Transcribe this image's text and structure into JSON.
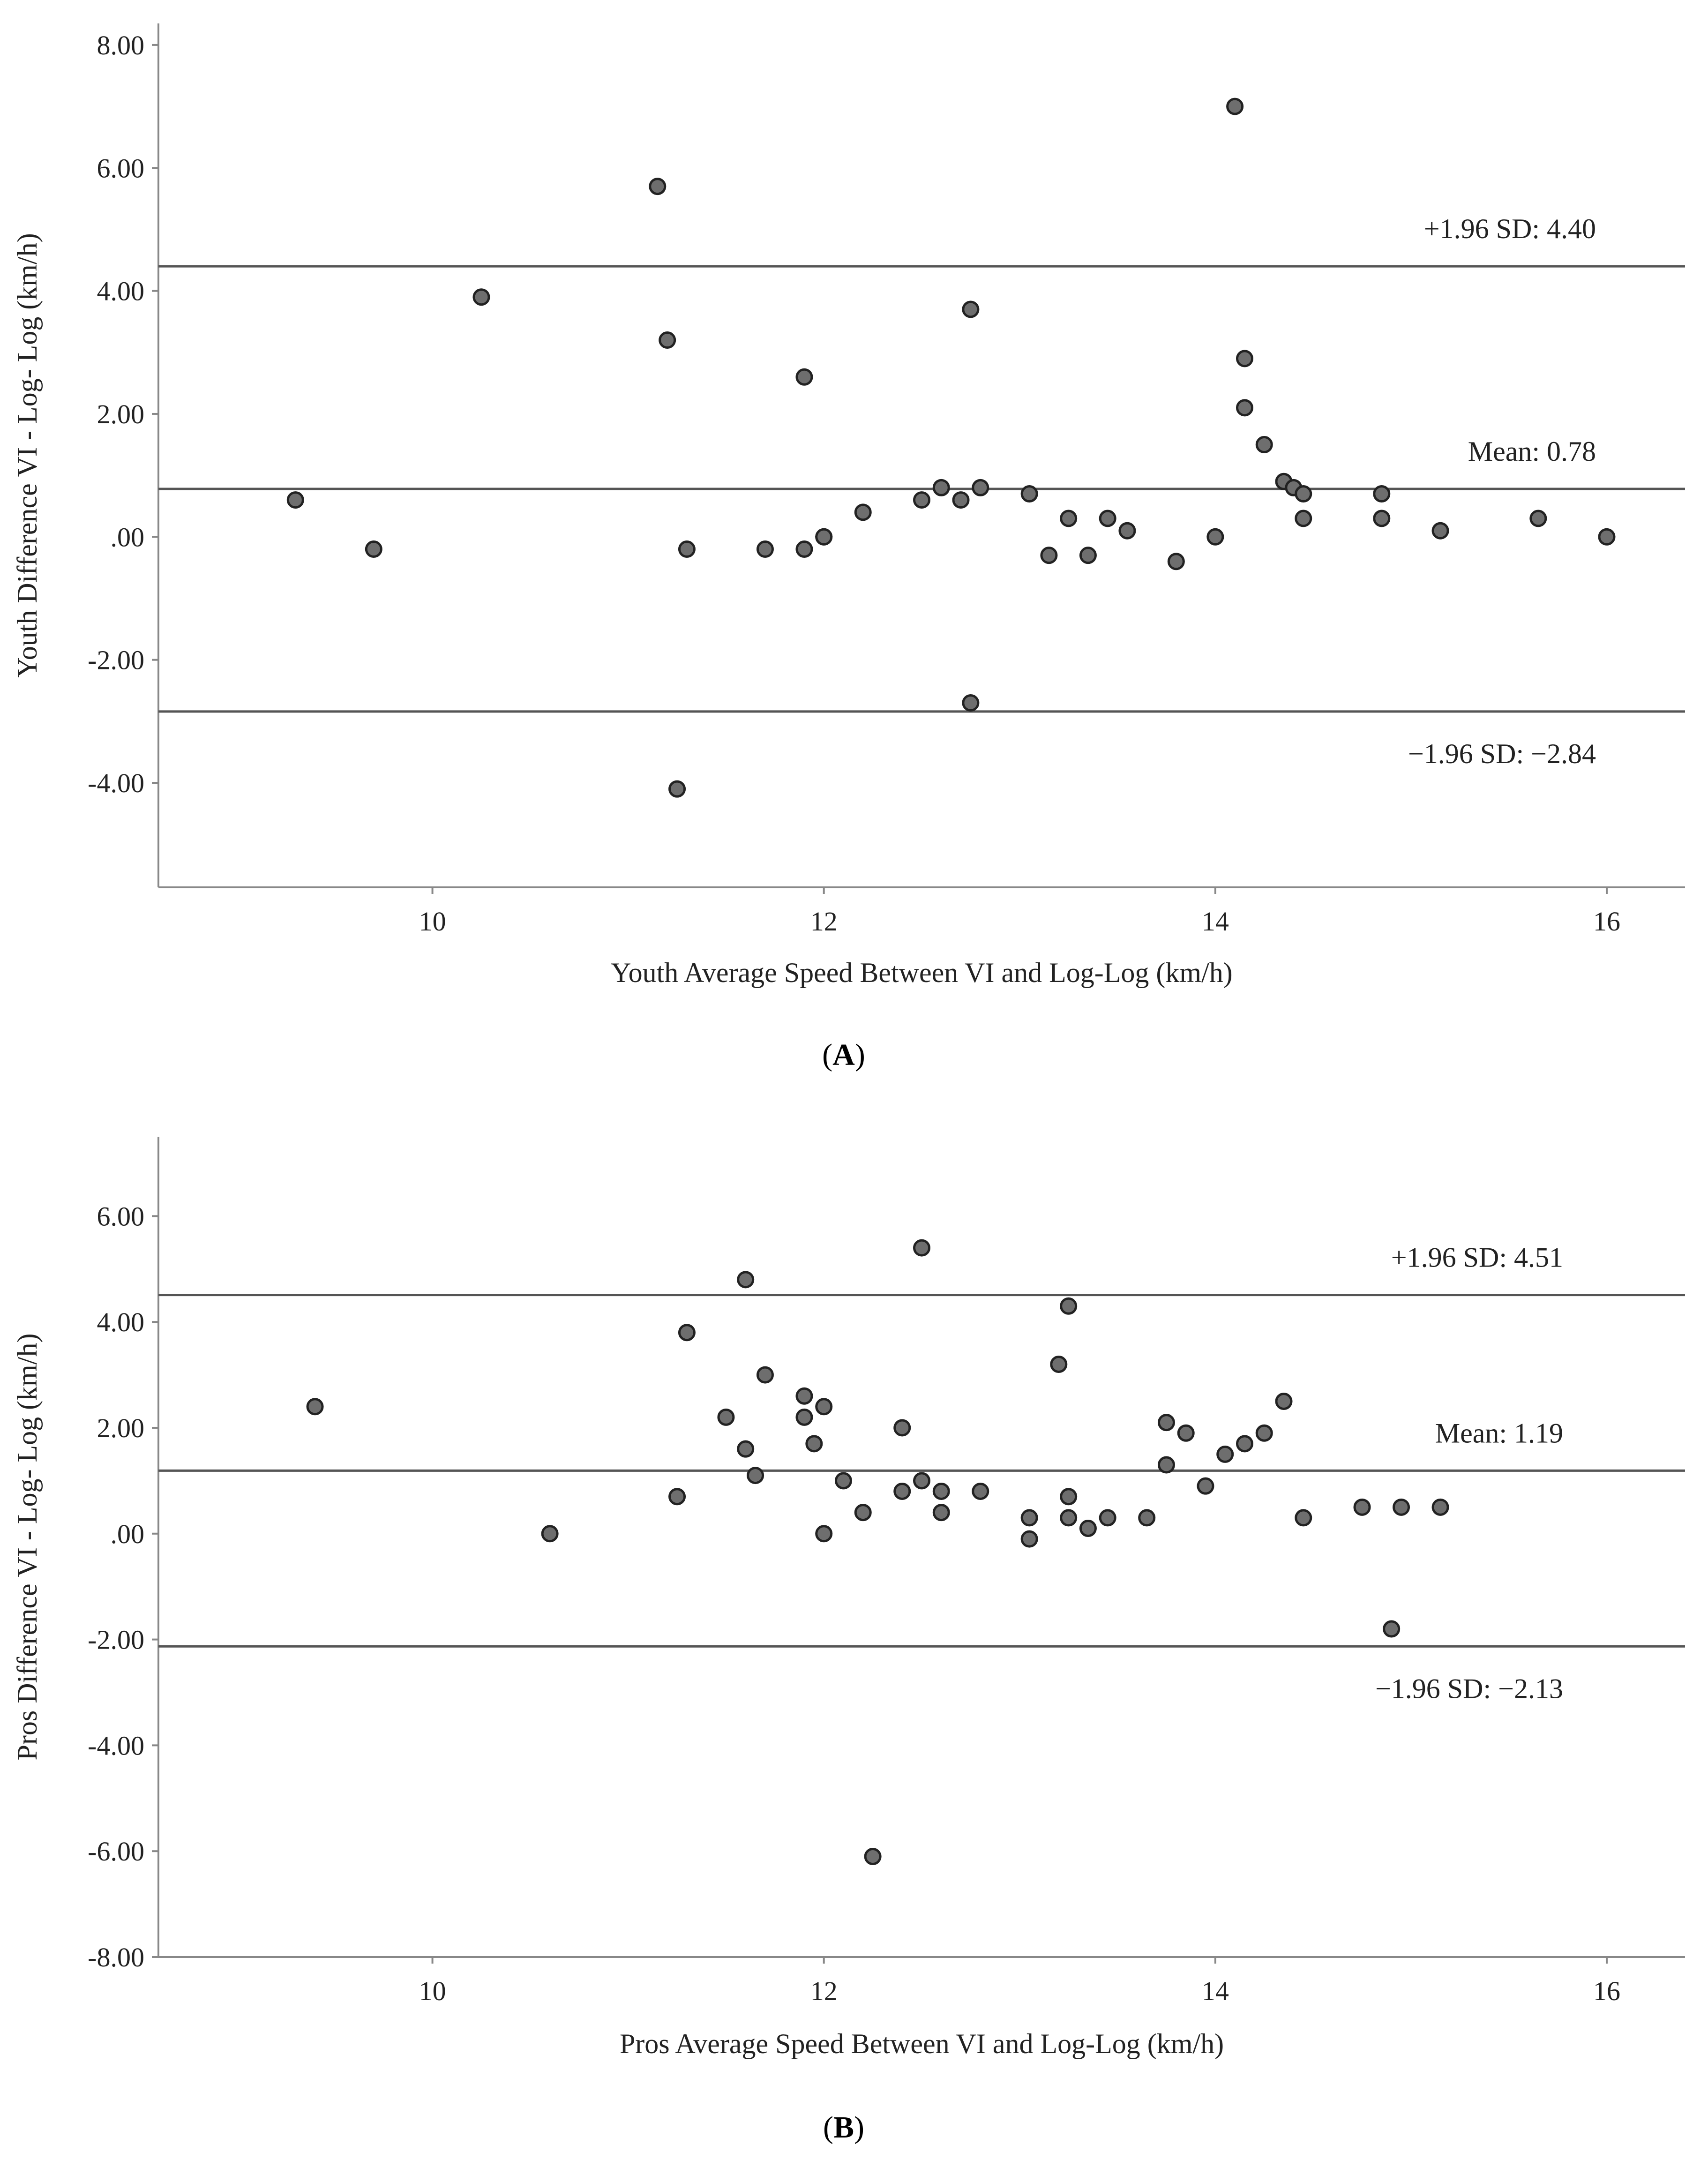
{
  "chart_data": [
    {
      "type": "scatter",
      "panel_label": "A",
      "xlabel": "Youth Average Speed Between VI and Log-Log (km/h)",
      "ylabel": "Youth Difference VI - Log- Log (km/h)",
      "xlim": [
        8.6,
        16.4
      ],
      "ylim": [
        -5.7,
        8.35
      ],
      "xticks": [
        10,
        12,
        14,
        16
      ],
      "xtick_labels": [
        "10",
        "12",
        "14",
        "16"
      ],
      "yticks": [
        8,
        6,
        4,
        2,
        0,
        -2,
        -4
      ],
      "ytick_labels": [
        "8.00",
        "6.00",
        "4.00",
        "2.00",
        ".00",
        "-2.00",
        "-4.00"
      ],
      "reference_lines": [
        {
          "name": "upper",
          "value": 4.4,
          "label": "+1.96 SD: 4.40"
        },
        {
          "name": "mean",
          "value": 0.78,
          "label": "Mean: 0.78"
        },
        {
          "name": "lower",
          "value": -2.84,
          "label": "−1.96 SD: −2.84"
        }
      ],
      "points": [
        {
          "x": 9.3,
          "y": 0.6
        },
        {
          "x": 9.7,
          "y": -0.2
        },
        {
          "x": 10.25,
          "y": 3.9
        },
        {
          "x": 11.15,
          "y": 5.7
        },
        {
          "x": 11.2,
          "y": 3.2
        },
        {
          "x": 11.25,
          "y": -4.1
        },
        {
          "x": 11.3,
          "y": -0.2
        },
        {
          "x": 11.7,
          "y": -0.2
        },
        {
          "x": 11.9,
          "y": 2.6
        },
        {
          "x": 11.9,
          "y": -0.2
        },
        {
          "x": 12.0,
          "y": 0.0
        },
        {
          "x": 12.0,
          "y": 0.0
        },
        {
          "x": 12.2,
          "y": 0.4
        },
        {
          "x": 12.5,
          "y": 0.6
        },
        {
          "x": 12.6,
          "y": 0.8
        },
        {
          "x": 12.7,
          "y": 0.6
        },
        {
          "x": 12.75,
          "y": 3.7
        },
        {
          "x": 12.75,
          "y": -2.7
        },
        {
          "x": 12.8,
          "y": 0.8
        },
        {
          "x": 13.05,
          "y": 0.7
        },
        {
          "x": 13.15,
          "y": -0.3
        },
        {
          "x": 13.25,
          "y": 0.3
        },
        {
          "x": 13.35,
          "y": -0.3
        },
        {
          "x": 13.45,
          "y": 0.3
        },
        {
          "x": 13.55,
          "y": 0.1
        },
        {
          "x": 13.8,
          "y": -0.4
        },
        {
          "x": 14.0,
          "y": 0.0
        },
        {
          "x": 14.1,
          "y": 7.0
        },
        {
          "x": 14.15,
          "y": 2.9
        },
        {
          "x": 14.15,
          "y": 2.1
        },
        {
          "x": 14.25,
          "y": 1.5
        },
        {
          "x": 14.35,
          "y": 0.9
        },
        {
          "x": 14.4,
          "y": 0.8
        },
        {
          "x": 14.45,
          "y": 0.7
        },
        {
          "x": 14.45,
          "y": 0.3
        },
        {
          "x": 14.85,
          "y": 0.7
        },
        {
          "x": 14.85,
          "y": 0.3
        },
        {
          "x": 15.15,
          "y": 0.1
        },
        {
          "x": 15.65,
          "y": 0.3
        },
        {
          "x": 16.0,
          "y": 0.0
        }
      ]
    },
    {
      "type": "scatter",
      "panel_label": "B",
      "xlabel": "Pros Average Speed Between VI and Log-Log (km/h)",
      "ylabel": "Pros Difference VI - Log- Log (km/h)",
      "xlim": [
        8.6,
        16.4
      ],
      "ylim": [
        -8.0,
        7.5
      ],
      "xticks": [
        10,
        12,
        14,
        16
      ],
      "xtick_labels": [
        "10",
        "12",
        "14",
        "16"
      ],
      "yticks": [
        6,
        4,
        2,
        0,
        -2,
        -4,
        -6,
        -8
      ],
      "ytick_labels": [
        "6.00",
        "4.00",
        "2.00",
        ".00",
        "-2.00",
        "-4.00",
        "-6.00",
        "-8.00"
      ],
      "reference_lines": [
        {
          "name": "upper",
          "value": 4.51,
          "label": "+1.96 SD: 4.51"
        },
        {
          "name": "mean",
          "value": 1.19,
          "label": "Mean: 1.19"
        },
        {
          "name": "lower",
          "value": -2.13,
          "label": "−1.96 SD: −2.13"
        }
      ],
      "points": [
        {
          "x": 9.4,
          "y": 2.4
        },
        {
          "x": 10.6,
          "y": 0.0
        },
        {
          "x": 11.25,
          "y": 0.7
        },
        {
          "x": 11.3,
          "y": 3.8
        },
        {
          "x": 11.5,
          "y": 2.2
        },
        {
          "x": 11.6,
          "y": 4.8
        },
        {
          "x": 11.6,
          "y": 1.6
        },
        {
          "x": 11.65,
          "y": 1.1
        },
        {
          "x": 11.7,
          "y": 3.0
        },
        {
          "x": 11.9,
          "y": 2.6
        },
        {
          "x": 11.9,
          "y": 2.2
        },
        {
          "x": 11.95,
          "y": 1.7
        },
        {
          "x": 12.0,
          "y": 2.4
        },
        {
          "x": 12.0,
          "y": 0.0
        },
        {
          "x": 12.1,
          "y": 1.0
        },
        {
          "x": 12.2,
          "y": 0.4
        },
        {
          "x": 12.25,
          "y": -6.1
        },
        {
          "x": 12.4,
          "y": 2.0
        },
        {
          "x": 12.4,
          "y": 0.8
        },
        {
          "x": 12.5,
          "y": 5.4
        },
        {
          "x": 12.5,
          "y": 1.0
        },
        {
          "x": 12.6,
          "y": 0.8
        },
        {
          "x": 12.6,
          "y": 0.4
        },
        {
          "x": 12.8,
          "y": 0.8
        },
        {
          "x": 13.05,
          "y": 0.3
        },
        {
          "x": 13.05,
          "y": -0.1
        },
        {
          "x": 13.2,
          "y": 3.2
        },
        {
          "x": 13.25,
          "y": 4.3
        },
        {
          "x": 13.25,
          "y": 0.7
        },
        {
          "x": 13.25,
          "y": 0.3
        },
        {
          "x": 13.35,
          "y": 0.1
        },
        {
          "x": 13.45,
          "y": 0.3
        },
        {
          "x": 13.65,
          "y": 0.3
        },
        {
          "x": 13.75,
          "y": 2.1
        },
        {
          "x": 13.75,
          "y": 1.3
        },
        {
          "x": 13.85,
          "y": 1.9
        },
        {
          "x": 13.95,
          "y": 0.9
        },
        {
          "x": 14.05,
          "y": 1.5
        },
        {
          "x": 14.15,
          "y": 1.7
        },
        {
          "x": 14.25,
          "y": 1.9
        },
        {
          "x": 14.35,
          "y": 2.5
        },
        {
          "x": 14.45,
          "y": 0.3
        },
        {
          "x": 14.75,
          "y": 0.5
        },
        {
          "x": 14.9,
          "y": -1.8
        },
        {
          "x": 14.95,
          "y": 0.5
        },
        {
          "x": 15.15,
          "y": 0.5
        }
      ]
    }
  ]
}
